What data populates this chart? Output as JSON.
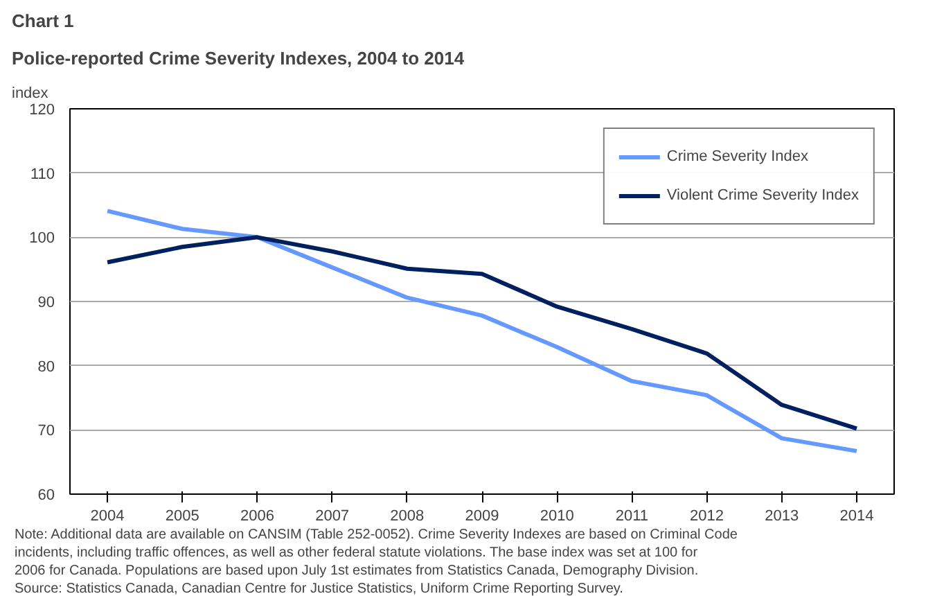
{
  "chart_data": {
    "type": "line",
    "title": "Chart 1",
    "subtitle": "Police-reported Crime Severity Indexes, 2004 to 2014",
    "ylabel": "index",
    "categories": [
      "2004",
      "2005",
      "2006",
      "2007",
      "2008",
      "2009",
      "2010",
      "2011",
      "2012",
      "2013",
      "2014"
    ],
    "series": [
      {
        "name": "Crime Severity Index",
        "color": "#6699ff",
        "values": [
          104.1,
          101.3,
          100,
          95.3,
          90.6,
          87.8,
          82.9,
          77.6,
          75.4,
          68.7,
          66.7
        ]
      },
      {
        "name": "Violent Crime Severity Index",
        "color": "#002060",
        "values": [
          96.1,
          98.5,
          100,
          97.8,
          95.1,
          94.3,
          89.2,
          85.7,
          81.9,
          73.9,
          70.2
        ]
      }
    ],
    "ylim": [
      60,
      120
    ],
    "yticks": [
      60,
      70,
      80,
      90,
      100,
      110,
      120
    ],
    "grid": "y",
    "legend": "top right",
    "marker": "none",
    "line_style": "solid",
    "annotations": [
      "Note: Additional data are available on CANSIM (Table 252-0052). Crime Severity Indexes are based on Criminal Code incidents, including traffic offences, as well as other federal statute violations. The base index was set at 100 for 2006 for Canada. Populations are based upon July 1st estimates from Statistics Canada, Demography Division.",
      "Source: Statistics Canada, Canadian Centre for Justice Statistics, Uniform Crime Reporting Survey."
    ]
  }
}
